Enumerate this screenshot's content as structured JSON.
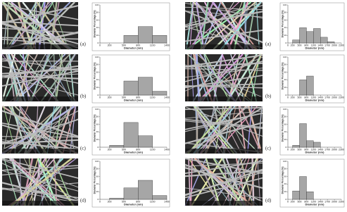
{
  "chart_data": [
    {
      "type": "histogram",
      "label": "(a)",
      "bins": [
        200,
        500,
        800,
        1100,
        1400
      ],
      "values": [
        0,
        20,
        43,
        20
      ],
      "color": "#a6a6a6",
      "xlim": [
        0,
        1400
      ],
      "xticks": [
        0,
        200,
        500,
        800,
        1100,
        1400
      ],
      "ylim": [
        0,
        100
      ],
      "yticks": [
        0,
        20,
        40,
        60,
        80,
        100
      ],
      "xlabel": "Diameter (nm)",
      "ylabel": "Diameter Percentage (%)"
    },
    {
      "type": "histogram",
      "label": "(b)",
      "bins": [
        200,
        500,
        800,
        1100,
        1400
      ],
      "values": [
        0,
        37,
        47,
        10
      ],
      "color": "#a6a6a6",
      "xlim": [
        0,
        1400
      ],
      "xticks": [
        0,
        200,
        500,
        800,
        1100,
        1400
      ],
      "ylim": [
        0,
        100
      ],
      "yticks": [
        0,
        20,
        40,
        60,
        80,
        100
      ],
      "xlabel": "Diameter (nm)",
      "ylabel": "Diameter Percentage (%)"
    },
    {
      "type": "histogram",
      "label": "(c)",
      "bins": [
        200,
        500,
        800,
        1100,
        1400
      ],
      "values": [
        5,
        65,
        30,
        0
      ],
      "color": "#a6a6a6",
      "xlim": [
        0,
        1400
      ],
      "xticks": [
        0,
        200,
        500,
        800,
        1100,
        1400
      ],
      "ylim": [
        0,
        100
      ],
      "yticks": [
        0,
        20,
        40,
        60,
        80,
        100
      ],
      "xlabel": "Diameter (nm)",
      "ylabel": "Diameter Percentage (%)"
    },
    {
      "type": "histogram",
      "label": "(d)",
      "bins": [
        200,
        500,
        800,
        1100,
        1400
      ],
      "values": [
        3,
        30,
        50,
        10
      ],
      "color": "#a6a6a6",
      "xlim": [
        0,
        1400
      ],
      "xticks": [
        0,
        200,
        500,
        800,
        1100,
        1400
      ],
      "ylim": [
        0,
        100
      ],
      "yticks": [
        0,
        20,
        40,
        60,
        80,
        100
      ],
      "xlabel": "Diameter (nm)",
      "ylabel": "Diameter Percentage (%)"
    },
    {
      "type": "histogram",
      "label": "(a)",
      "bins": [
        200,
        500,
        800,
        1100,
        1400,
        1700,
        2000
      ],
      "values": [
        8,
        40,
        30,
        38,
        15,
        3
      ],
      "color": "#a6a6a6",
      "xlim": [
        0,
        2300
      ],
      "xticks": [
        0,
        200,
        500,
        800,
        1100,
        1400,
        1700,
        2000,
        2300
      ],
      "ylim": [
        0,
        100
      ],
      "yticks": [
        0,
        20,
        40,
        60,
        80,
        100
      ],
      "xlabel": "Diameter (nm)",
      "ylabel": "Diameter Percentage (%)"
    },
    {
      "type": "histogram",
      "label": "(b)",
      "bins": [
        200,
        500,
        800,
        1100,
        1400,
        1700,
        2000
      ],
      "values": [
        0,
        40,
        50,
        0,
        0,
        0
      ],
      "color": "#a6a6a6",
      "xlim": [
        0,
        2300
      ],
      "xticks": [
        0,
        200,
        500,
        800,
        1100,
        1400,
        1700,
        2000,
        2300
      ],
      "ylim": [
        0,
        100
      ],
      "yticks": [
        0,
        20,
        40,
        60,
        80,
        100
      ],
      "xlabel": "Diameter (nm)",
      "ylabel": "Diameter Percentage (%)"
    },
    {
      "type": "histogram",
      "label": "(c)",
      "bins": [
        200,
        500,
        800,
        1100,
        1400,
        1700,
        2000
      ],
      "values": [
        5,
        62,
        17,
        13,
        0,
        0
      ],
      "color": "#a6a6a6",
      "xlim": [
        0,
        2300
      ],
      "xticks": [
        0,
        200,
        500,
        800,
        1100,
        1400,
        1700,
        2000,
        2300
      ],
      "ylim": [
        0,
        100
      ],
      "yticks": [
        0,
        20,
        40,
        60,
        80,
        100
      ],
      "xlabel": "Diameter (nm)",
      "ylabel": "Diameter Percentage (%)"
    },
    {
      "type": "histogram",
      "label": "(d)",
      "bins": [
        200,
        500,
        800,
        1100,
        1400,
        1700,
        2000
      ],
      "values": [
        22,
        60,
        20,
        0,
        0,
        0
      ],
      "color": "#a6a6a6",
      "xlim": [
        0,
        2300
      ],
      "xticks": [
        0,
        200,
        500,
        800,
        1100,
        1400,
        1700,
        2000,
        2300
      ],
      "ylim": [
        0,
        100
      ],
      "yticks": [
        0,
        20,
        40,
        60,
        80,
        100
      ],
      "xlabel": "Diameter (nm)",
      "ylabel": "Diameter Percentage (%)"
    }
  ]
}
